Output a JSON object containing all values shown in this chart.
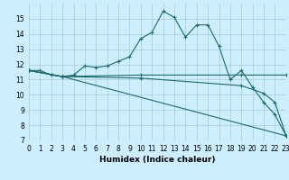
{
  "xlabel": "Humidex (Indice chaleur)",
  "bg_color": "#cceeff",
  "line_color": "#1a6b6b",
  "grid_color": "#aacccc",
  "series": [
    {
      "x": [
        0,
        1,
        2,
        3,
        4,
        5,
        6,
        7,
        8,
        9,
        10,
        11,
        12,
        13,
        14,
        15,
        16,
        17,
        18,
        19,
        20,
        21,
        22,
        23
      ],
      "y": [
        11.6,
        11.6,
        11.3,
        11.2,
        11.3,
        11.9,
        11.8,
        11.9,
        12.2,
        12.5,
        13.7,
        14.1,
        15.5,
        15.1,
        13.8,
        14.6,
        14.6,
        13.2,
        11.0,
        11.6,
        10.5,
        9.5,
        8.7,
        7.3
      ]
    },
    {
      "x": [
        0,
        3,
        10,
        19,
        23
      ],
      "y": [
        11.6,
        11.2,
        11.3,
        11.3,
        11.3
      ]
    },
    {
      "x": [
        0,
        3,
        10,
        19,
        21,
        22,
        23
      ],
      "y": [
        11.6,
        11.2,
        11.1,
        10.6,
        10.1,
        9.5,
        7.3
      ]
    },
    {
      "x": [
        0,
        3,
        23
      ],
      "y": [
        11.6,
        11.2,
        7.3
      ]
    }
  ],
  "xlim": [
    0,
    23
  ],
  "ylim": [
    7,
    16
  ],
  "yticks": [
    7,
    8,
    9,
    10,
    11,
    12,
    13,
    14,
    15
  ],
  "xticks": [
    0,
    1,
    2,
    3,
    4,
    5,
    6,
    7,
    8,
    9,
    10,
    11,
    12,
    13,
    14,
    15,
    16,
    17,
    18,
    19,
    20,
    21,
    22,
    23
  ],
  "xlabel_fontsize": 6.5,
  "tick_fontsize": 5.5
}
